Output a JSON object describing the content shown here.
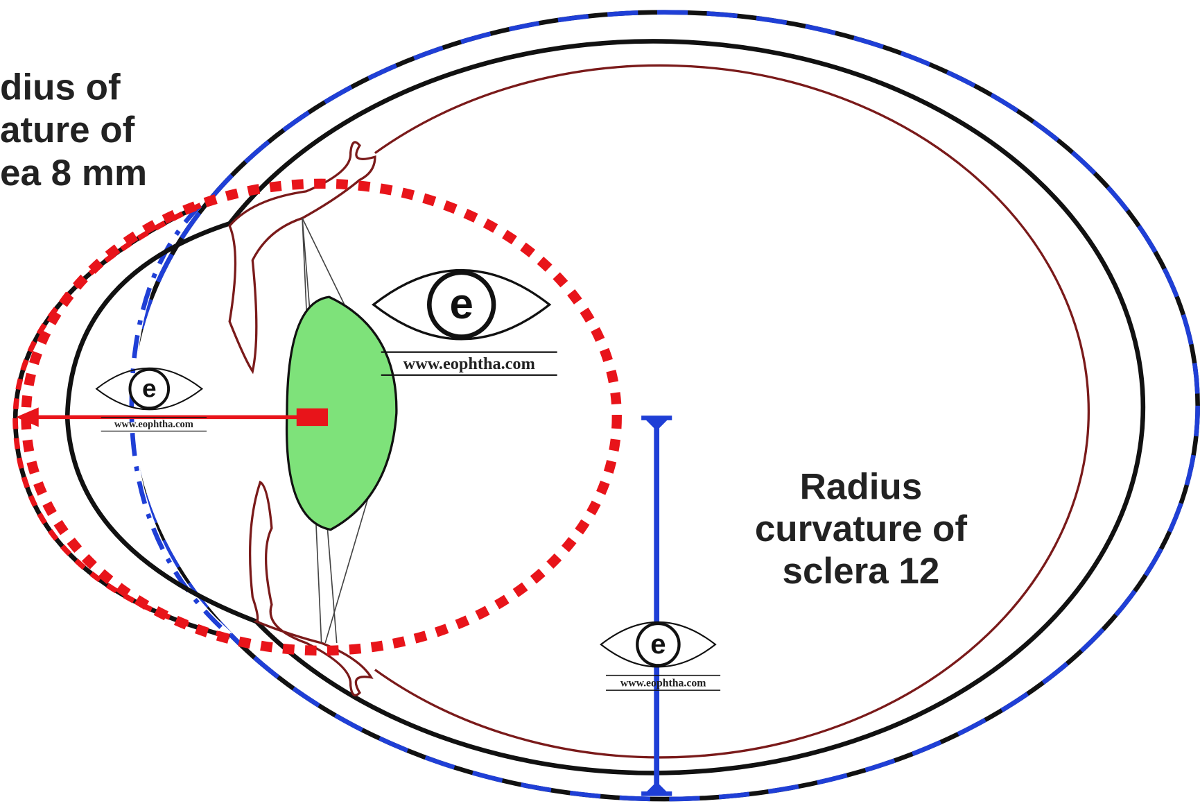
{
  "labels": {
    "cornea": [
      "dius of",
      "ature of",
      "ea 8 mm"
    ],
    "sclera": [
      "Radius",
      "curvature of",
      "sclera 12"
    ]
  },
  "watermark": {
    "logo": "e",
    "url": "www.eophtha.com"
  }
}
